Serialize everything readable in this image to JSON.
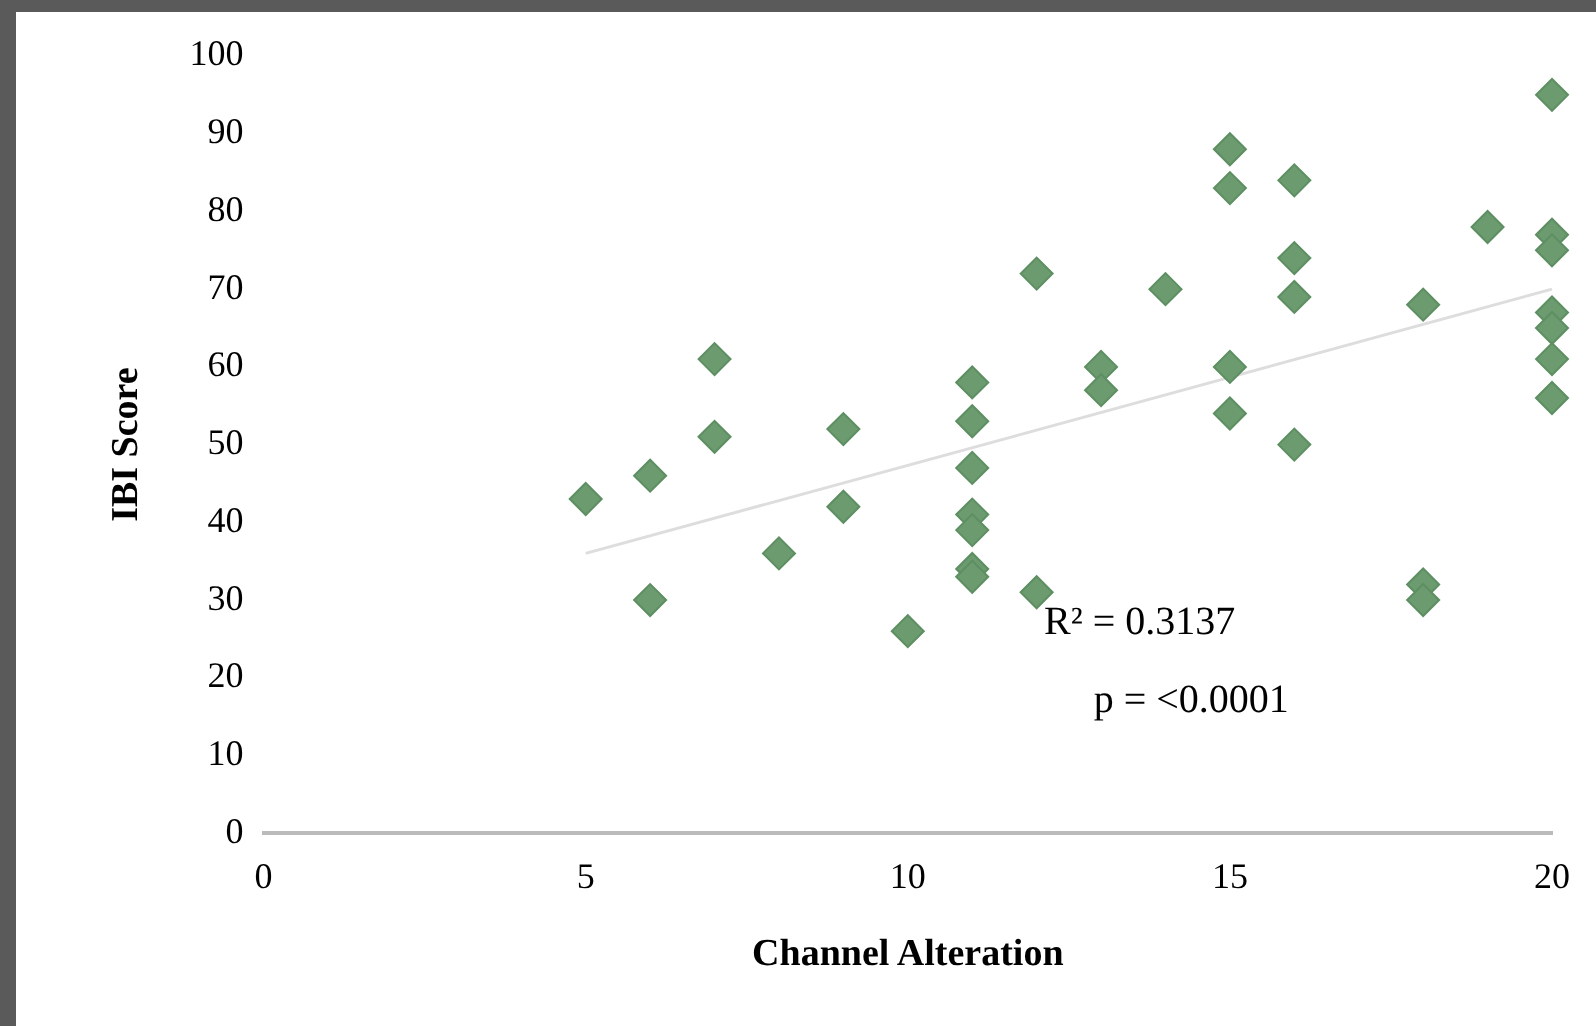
{
  "chart_data": {
    "type": "scatter",
    "xlabel": "Channel Alteration",
    "ylabel": "IBI Score",
    "xlim": [
      0,
      20
    ],
    "xticks": [
      0,
      5,
      10,
      15,
      20
    ],
    "ylim": [
      0,
      100
    ],
    "yticks": [
      0,
      10,
      20,
      30,
      40,
      50,
      60,
      70,
      80,
      90,
      100
    ],
    "grid": false,
    "legend": false,
    "marker": "diamond",
    "series": [
      {
        "type": "scatter",
        "color": "#6b9b6f",
        "x": [
          5,
          6,
          6,
          7,
          7,
          8,
          9,
          9,
          10,
          11,
          11,
          11,
          11,
          11,
          11,
          11,
          12,
          12,
          13,
          13,
          14,
          15,
          15,
          15,
          15,
          16,
          16,
          16,
          16,
          18,
          18,
          18,
          19,
          20,
          20,
          20,
          20,
          20,
          20,
          20
        ],
        "values": [
          43,
          46,
          30,
          61,
          51,
          36,
          52,
          42,
          26,
          58,
          53,
          47,
          41,
          39,
          34,
          33,
          72,
          31,
          60,
          57,
          70,
          88,
          83,
          60,
          54,
          84,
          74,
          69,
          50,
          68,
          32,
          30,
          78,
          95,
          77,
          75,
          67,
          65,
          61,
          56
        ]
      },
      {
        "type": "line",
        "color": "#dddddd",
        "marker": "none",
        "x": [
          5,
          20
        ],
        "values": [
          36,
          70
        ]
      }
    ],
    "annotations": [
      "R² = 0.3137",
      "p = <0.0001"
    ]
  }
}
